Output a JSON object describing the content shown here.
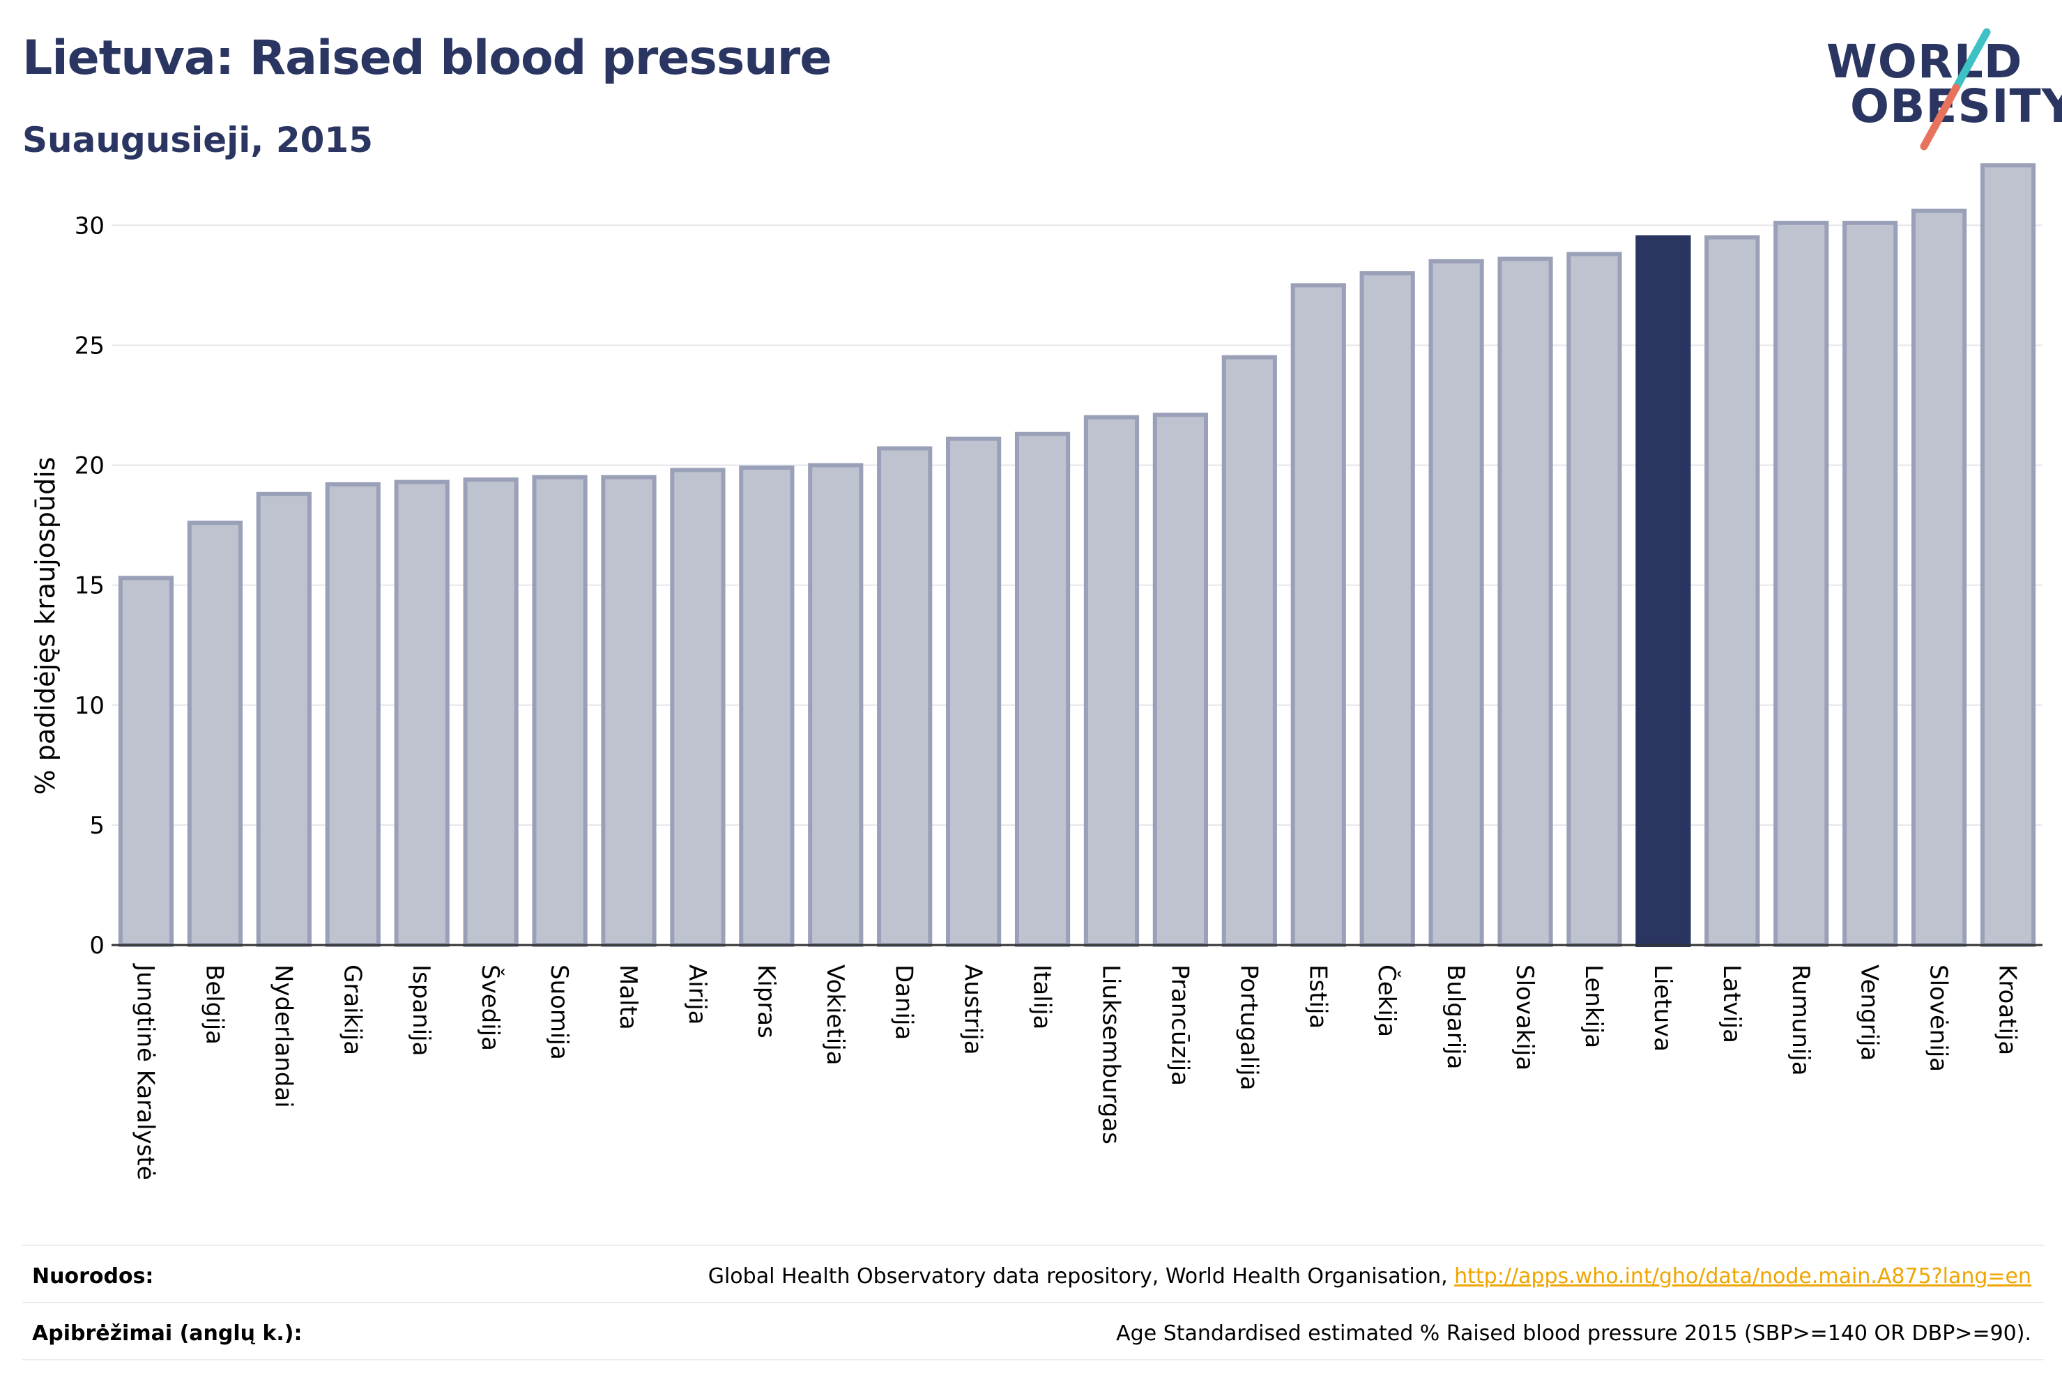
{
  "header": {
    "title": "Lietuva: Raised blood pressure",
    "subtitle": "Suaugusieji, 2015"
  },
  "logo": {
    "line1": "WORLD",
    "line2": "OBESITY",
    "slash_colors": [
      "#3ec1c4",
      "#e8735c"
    ]
  },
  "colors": {
    "bar_fill": "#bfc3d0",
    "bar_stroke": "#9aa0b8",
    "highlight_fill": "#2a3561",
    "title": "#2a3561",
    "grid": "#e6e6ec",
    "link": "#f0a500"
  },
  "chart_data": {
    "type": "bar",
    "ylabel": "% padidėjęs kraujospūdis",
    "xlabel": "",
    "ylim": [
      0,
      33
    ],
    "yticks": [
      0,
      5,
      10,
      15,
      20,
      25,
      30
    ],
    "grid": true,
    "highlight": "Lietuva",
    "categories": [
      "Jungtinė Karalystė",
      "Belgija",
      "Nyderlandai",
      "Graikija",
      "Ispanija",
      "Švedija",
      "Suomija",
      "Malta",
      "Airija",
      "Kipras",
      "Vokietija",
      "Danija",
      "Austrija",
      "Italija",
      "Liuksemburgas",
      "Prancūzija",
      "Portugalija",
      "Estija",
      "Čekija",
      "Bulgarija",
      "Slovakija",
      "Lenkija",
      "Lietuva",
      "Latvija",
      "Rumunija",
      "Vengrija",
      "Slovėnija",
      "Kroatija"
    ],
    "values": [
      15.3,
      17.6,
      18.8,
      19.2,
      19.3,
      19.4,
      19.5,
      19.5,
      19.8,
      19.9,
      20.0,
      20.7,
      21.1,
      21.3,
      22.0,
      22.1,
      24.5,
      27.5,
      28.0,
      28.5,
      28.6,
      28.8,
      29.5,
      29.5,
      30.1,
      30.1,
      30.6,
      32.5
    ]
  },
  "footer": {
    "sources_label": "Nuorodos:",
    "sources_text": "Global Health Observatory data repository, World Health Organisation, ",
    "sources_link": "http://apps.who.int/gho/data/node.main.A875?lang=en",
    "definitions_label": "Apibrėžimai (anglų k.):",
    "definitions_text": "Age Standardised estimated % Raised blood pressure 2015 (SBP>=140 OR DBP>=90)."
  }
}
